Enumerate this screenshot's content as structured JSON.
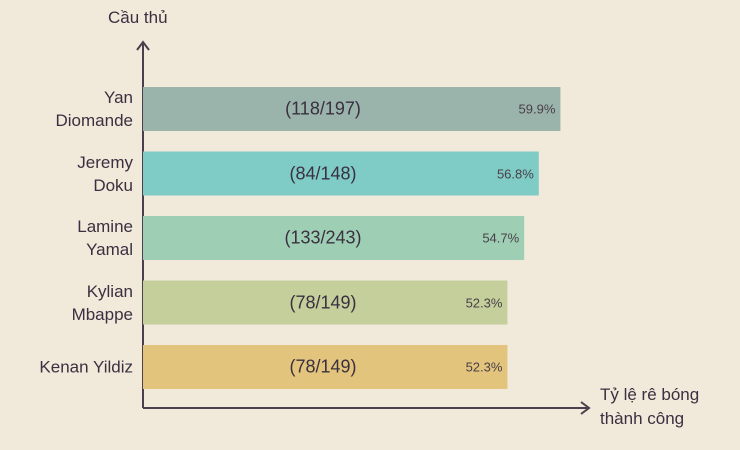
{
  "chart_data": {
    "type": "bar",
    "orientation": "horizontal",
    "y_label": "Cầu thủ",
    "x_label": "Tỷ lệ rê bóng\nthành công",
    "categories": [
      "Yan\nDiomande",
      "Jeremy\nDoku",
      "Lamine\nYamal",
      "Kylian\nMbappe",
      "Kenan Yildiz"
    ],
    "values": [
      59.9,
      56.8,
      54.7,
      52.3,
      52.3
    ],
    "value_labels": [
      "59.9%",
      "56.8%",
      "54.7%",
      "52.3%",
      "52.3%"
    ],
    "annotations": [
      "(118/197)",
      "(84/148)",
      "(133/243)",
      "(78/149)",
      "(78/149)"
    ],
    "colors": [
      "#9ab3ab",
      "#7fcbc6",
      "#9ecfb5",
      "#c4cf9b",
      "#e3c47c"
    ],
    "xlim": [
      0,
      64
    ]
  }
}
